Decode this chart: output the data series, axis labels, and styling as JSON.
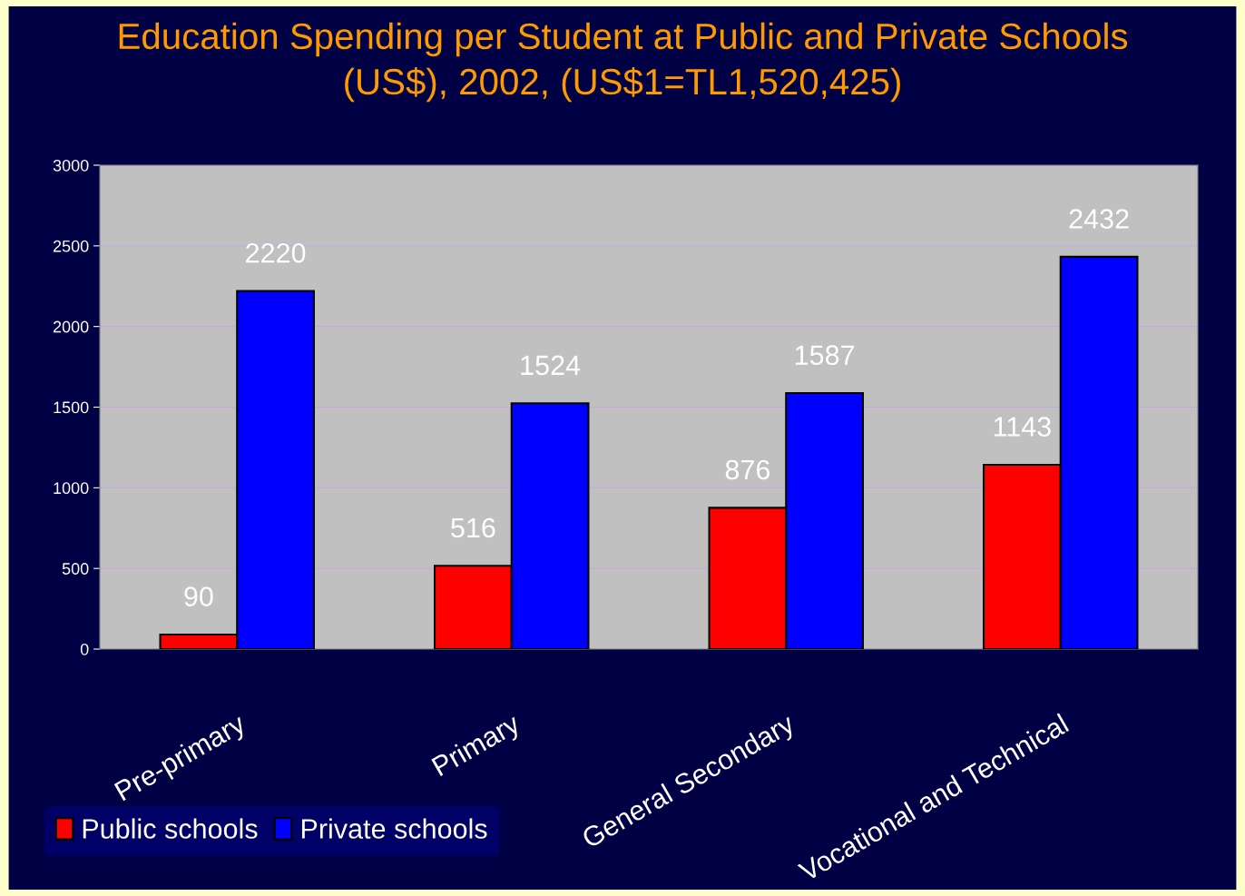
{
  "chart_data": {
    "type": "bar",
    "title": "Education Spending per Student at Public and Private Schools\n(US$), 2002, (US$1=TL1,520,425)",
    "categories": [
      "Pre-primary",
      "Primary",
      "General Secondary",
      "Vocational and Technical"
    ],
    "series": [
      {
        "name": "Public schools",
        "color": "#ff0000",
        "values": [
          90,
          516,
          876,
          1143
        ]
      },
      {
        "name": "Private schools",
        "color": "#0000ff",
        "values": [
          2220,
          1524,
          1587,
          2432
        ]
      }
    ],
    "ylim": [
      0,
      3000
    ],
    "yticks": [
      0,
      500,
      1000,
      1500,
      2000,
      2500,
      3000
    ],
    "grid": "y",
    "legend": "bottom left",
    "data_labels": true
  }
}
